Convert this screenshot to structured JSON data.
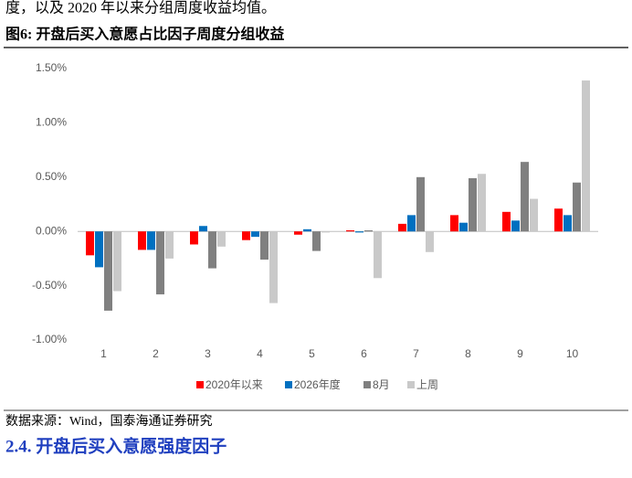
{
  "document": {
    "intro_text": "度，以及 2020 年以来分组周度收益均值。",
    "figure_title": "图6:  开盘后买入意愿占比因子周度分组收益",
    "source": "数据来源：Wind，国泰海通证券研究",
    "section_heading": "2.4.   开盘后买入意愿强度因子"
  },
  "chart_data": {
    "type": "bar",
    "categories": [
      "1",
      "2",
      "3",
      "4",
      "5",
      "6",
      "7",
      "8",
      "9",
      "10"
    ],
    "series": [
      {
        "name": "2020年以来",
        "color": "#ff0000",
        "values": [
          -0.22,
          -0.17,
          -0.12,
          -0.08,
          -0.03,
          0.01,
          0.07,
          0.15,
          0.18,
          0.21
        ]
      },
      {
        "name": "2026年度",
        "color": "#0070c0",
        "values": [
          -0.33,
          -0.17,
          0.05,
          -0.05,
          0.02,
          -0.01,
          0.15,
          0.08,
          0.1,
          0.15
        ]
      },
      {
        "name": "8月",
        "color": "#808080",
        "values": [
          -0.73,
          -0.58,
          -0.34,
          -0.26,
          -0.18,
          0.01,
          0.5,
          0.49,
          0.64,
          0.45
        ]
      },
      {
        "name": "上周",
        "color": "#c9c9c9",
        "values": [
          -0.55,
          -0.25,
          -0.14,
          -0.66,
          -0.01,
          -0.43,
          -0.19,
          0.53,
          0.3,
          1.39
        ]
      }
    ],
    "ylim": [
      -1.0,
      1.5
    ],
    "yticks": [
      {
        "value": -1.0,
        "label": "-1.00%"
      },
      {
        "value": -0.5,
        "label": "-0.50%"
      },
      {
        "value": 0,
        "label": "0.00%"
      },
      {
        "value": 0.5,
        "label": "0.50%"
      },
      {
        "value": 1.0,
        "label": "1.00%"
      },
      {
        "value": 1.5,
        "label": "1.50%"
      }
    ],
    "grid": false,
    "legend": "bottom"
  }
}
